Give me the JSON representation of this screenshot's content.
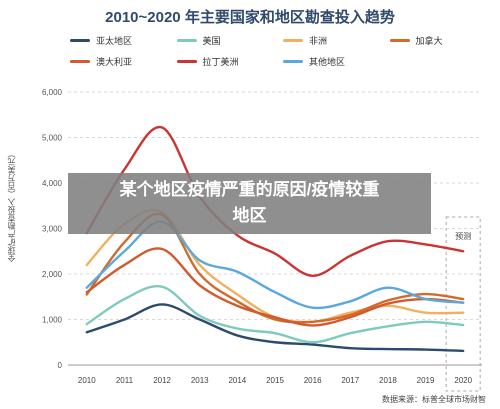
{
  "chart_data": {
    "type": "line",
    "title": "2010~2020 年主要国家和地区勘查投入趋势",
    "ylabel": "全球矿产勘查投入（百万美元）",
    "xlabel": "",
    "ylim": [
      0,
      6000
    ],
    "yticks": [
      "0",
      "1,000",
      "2,000",
      "3,000",
      "4,000",
      "5,000",
      "6,000"
    ],
    "x": [
      "2010",
      "2011",
      "2012",
      "2013",
      "2014",
      "2015",
      "2016",
      "2017",
      "2018",
      "2019",
      "2020"
    ],
    "grid": true,
    "legend": "top",
    "annotation": "预测",
    "series": [
      {
        "name": "亚太地区",
        "color": "#2c4a6e",
        "values": [
          720,
          1000,
          1330,
          1000,
          650,
          500,
          450,
          370,
          350,
          340,
          310
        ]
      },
      {
        "name": "美国",
        "color": "#7ecbbd",
        "values": [
          900,
          1450,
          1720,
          1080,
          800,
          700,
          500,
          700,
          850,
          950,
          880
        ]
      },
      {
        "name": "非洲",
        "color": "#f0b060",
        "values": [
          2200,
          3100,
          3350,
          2200,
          1550,
          1050,
          950,
          1150,
          1300,
          1150,
          1150
        ]
      },
      {
        "name": "加拿大",
        "color": "#d26a2a",
        "values": [
          1550,
          2700,
          3300,
          2000,
          1400,
          1000,
          950,
          1100,
          1420,
          1560,
          1450
        ]
      },
      {
        "name": "澳大利亚",
        "color": "#d25a2e",
        "values": [
          1600,
          2200,
          2550,
          1750,
          1300,
          1050,
          870,
          1050,
          1350,
          1450,
          1370
        ]
      },
      {
        "name": "拉丁美洲",
        "color": "#cc3333",
        "values": [
          2900,
          4300,
          5220,
          3700,
          2850,
          2450,
          1960,
          2400,
          2720,
          2650,
          2500
        ]
      },
      {
        "name": "其他地区",
        "color": "#5ba8dc",
        "values": [
          1700,
          2500,
          3150,
          2300,
          2050,
          1600,
          1260,
          1400,
          1700,
          1450,
          1370
        ]
      }
    ]
  },
  "overlay": {
    "line1": "某个地区疫情严重的原因/疫情较重",
    "line2": "地区"
  },
  "source": "数据来源：标普全球市场财智"
}
